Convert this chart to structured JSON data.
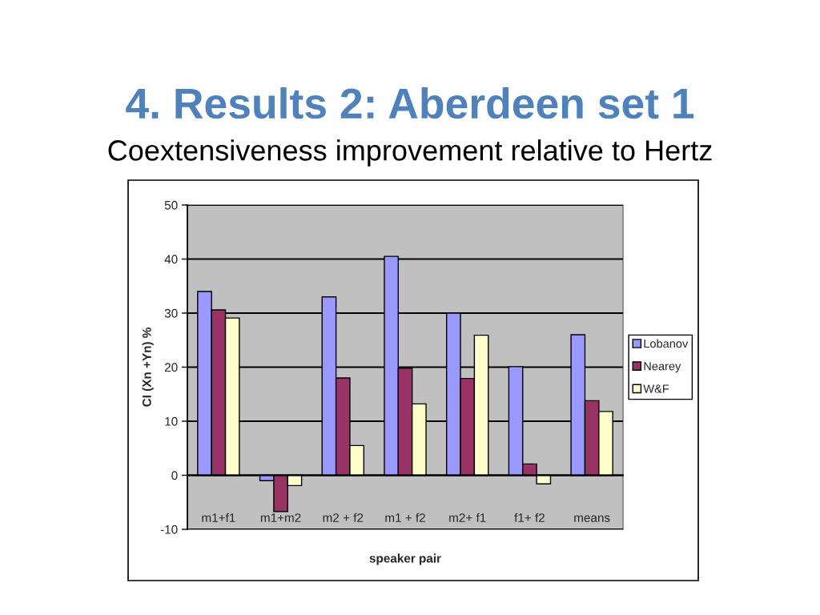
{
  "chart_data": {
    "type": "bar",
    "title": "4. Results 2: Aberdeen set 1",
    "subtitle": "Coextensiveness improvement relative to Hertz",
    "xlabel": "speaker pair",
    "ylabel": "CI (Xn +Yn) %",
    "categories": [
      "m1+f1",
      "m1+m2",
      "m2 + f2",
      "m1 + f2",
      "m2+ f1",
      "f1+ f2",
      "means"
    ],
    "series": [
      {
        "name": "Lobanov",
        "color": "#9999ff",
        "values": [
          34.0,
          -1.0,
          33.0,
          40.5,
          30.0,
          20.1,
          26.0
        ]
      },
      {
        "name": "Nearey",
        "color": "#993366",
        "values": [
          30.6,
          -6.7,
          18.0,
          19.8,
          17.9,
          2.1,
          13.8
        ]
      },
      {
        "name": "W&F",
        "color": "#ffffcc",
        "values": [
          29.1,
          -1.9,
          5.5,
          13.2,
          25.9,
          -1.6,
          11.8
        ]
      }
    ],
    "ylim": [
      -10,
      50
    ],
    "yticks": [
      -10,
      0,
      10,
      20,
      30,
      40,
      50
    ],
    "grid": "y",
    "legend": "right"
  }
}
